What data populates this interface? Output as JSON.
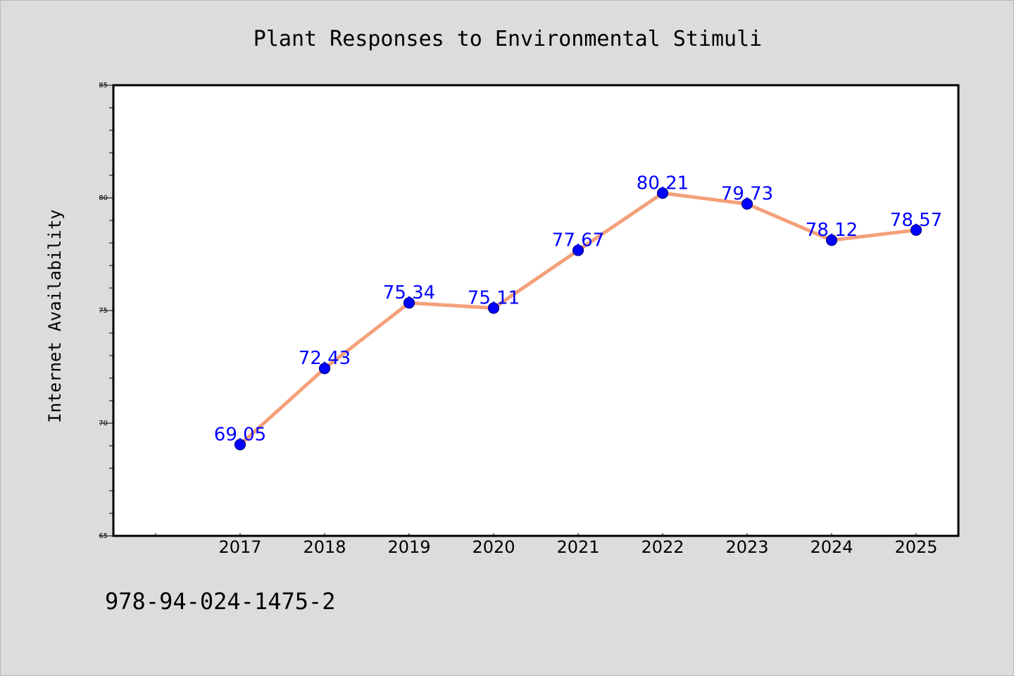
{
  "chart_data": {
    "type": "line",
    "title": "Plant Responses to Environmental Stimuli",
    "xlabel": "",
    "ylabel": "Internet Availability",
    "categories": [
      "2017",
      "2018",
      "2019",
      "2020",
      "2021",
      "2022",
      "2023",
      "2024",
      "2025"
    ],
    "series": [
      {
        "values": [
          69.05,
          72.43,
          75.34,
          75.11,
          77.67,
          80.21,
          79.73,
          78.12,
          78.57
        ],
        "data_labels": [
          "69.05",
          "72.43",
          "75.34",
          "75.11",
          "77.67",
          "80.21",
          "79.73",
          "78.12",
          "78.57"
        ]
      }
    ],
    "ylim": [
      65,
      85
    ],
    "yticks": [
      "65",
      "70",
      "75",
      "80",
      "85"
    ],
    "grid": false,
    "legend": "none",
    "colors": {
      "line": "#f4a07a",
      "marker": "#0000ff",
      "marker_edge": "#000080",
      "data_label": "#0000ff",
      "plot_background": "#ffffff",
      "figure_background": "#dcdcdc"
    }
  },
  "footnote": "978-94-024-1475-2"
}
